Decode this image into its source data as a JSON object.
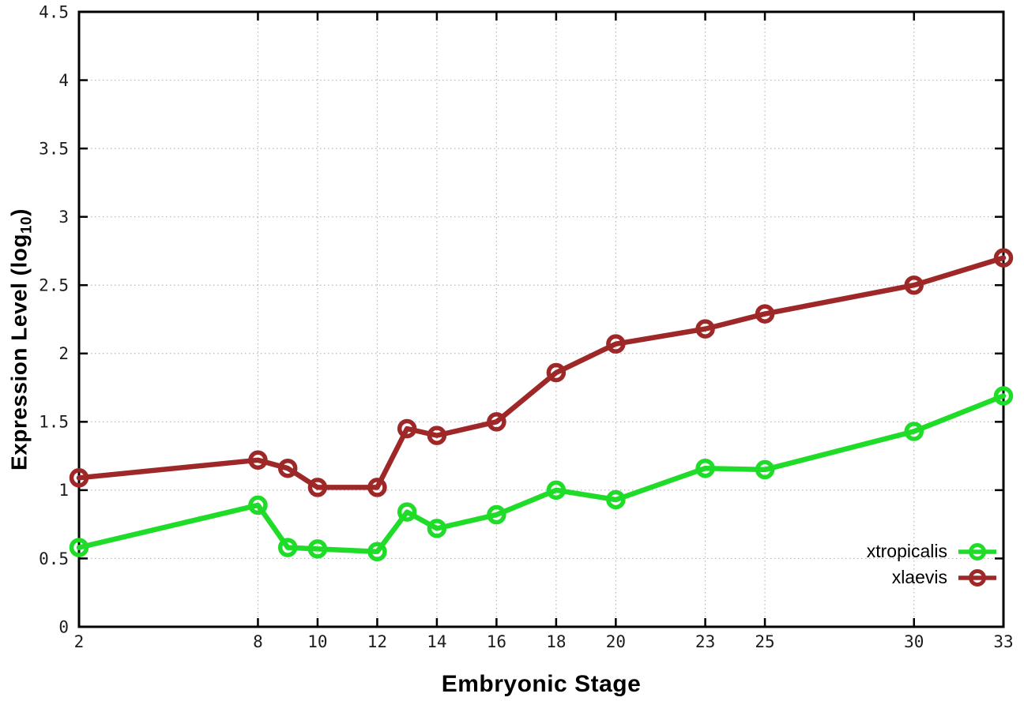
{
  "chart_data": {
    "type": "line",
    "xlabel": "Embryonic Stage",
    "ylabel": "Expression Level (log10)",
    "ylabel_parts": {
      "pre": "Expression Level (log",
      "sub": "10",
      "post": ")"
    },
    "x": [
      2,
      8,
      9,
      10,
      12,
      13,
      14,
      16,
      18,
      20,
      23,
      25,
      30,
      33
    ],
    "series": [
      {
        "name": "xtropicalis",
        "color": "#1edc28",
        "values": [
          0.58,
          0.89,
          0.58,
          0.57,
          0.55,
          0.84,
          0.72,
          0.82,
          1.0,
          0.93,
          1.16,
          1.15,
          1.43,
          1.69
        ]
      },
      {
        "name": "xlaevis",
        "color": "#9e2828",
        "values": [
          1.09,
          1.22,
          1.16,
          1.02,
          1.02,
          1.45,
          1.4,
          1.5,
          1.86,
          2.07,
          2.18,
          2.29,
          2.5,
          2.7
        ]
      }
    ],
    "xlim": [
      2,
      33
    ],
    "ylim": [
      0,
      4.5
    ],
    "x_ticks": {
      "values": [
        2,
        8,
        10,
        12,
        14,
        16,
        18,
        20,
        23,
        25,
        30,
        33
      ],
      "labels": [
        "2",
        "8",
        "10",
        "12",
        "14",
        "16",
        "18",
        "20",
        "23",
        "25",
        "30",
        "33"
      ]
    },
    "y_ticks": {
      "values": [
        0,
        0.5,
        1,
        1.5,
        2,
        2.5,
        3,
        3.5,
        4,
        4.5
      ],
      "labels": [
        "0",
        "0.5",
        "1",
        "1.5",
        "2",
        "2.5",
        "3",
        "3.5",
        "4",
        "4.5"
      ]
    },
    "grid": true,
    "legend_position": "bottom-right",
    "marker": "open-circle"
  },
  "colors": {
    "xtropicalis": "#1edc28",
    "xlaevis": "#9e2828",
    "axis": "#000000",
    "grid": "#b8b8b8",
    "tick_text": "#1c1c1c"
  }
}
